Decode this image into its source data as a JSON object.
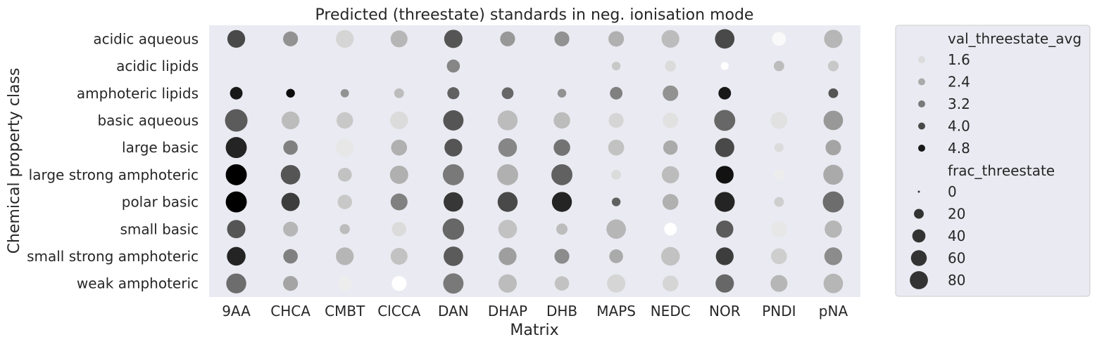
{
  "chart_data": {
    "type": "scatter",
    "title": "Predicted (threestate) standards in neg. ionisation mode",
    "xlabel": "Matrix",
    "ylabel": "Chemical property class",
    "x_categories": [
      "9AA",
      "CHCA",
      "CMBT",
      "ClCCA",
      "DAN",
      "DHAP",
      "DHB",
      "MAPS",
      "NEDC",
      "NOR",
      "PNDI",
      "pNA"
    ],
    "y_categories": [
      "acidic aqueous",
      "acidic lipids",
      "amphoteric lipids",
      "basic aqueous",
      "large basic",
      "large strong amphoteric",
      "polar basic",
      "small basic",
      "small strong amphoteric",
      "weak amphoteric"
    ],
    "color_legend_title": "val_threestate_avg",
    "color_legend_values": [
      "1.6",
      "2.4",
      "3.2",
      "4.0",
      "4.8"
    ],
    "size_legend_title": "frac_threestate",
    "size_legend_values": [
      "0",
      "20",
      "40",
      "60",
      "80"
    ],
    "legend_position": "outside-right",
    "background": "#eaeaf2",
    "color_scale": {
      "min_value": 1.0,
      "max_value": 5.2,
      "light": "#ffffff",
      "dark": "#000000"
    },
    "points": [
      {
        "x": "9AA",
        "y": "acidic aqueous",
        "frac": 45,
        "val": 4.0
      },
      {
        "x": "CHCA",
        "y": "acidic aqueous",
        "frac": 30,
        "val": 2.8
      },
      {
        "x": "CMBT",
        "y": "acidic aqueous",
        "frac": 45,
        "val": 1.7
      },
      {
        "x": "ClCCA",
        "y": "acidic aqueous",
        "frac": 40,
        "val": 2.2
      },
      {
        "x": "DAN",
        "y": "acidic aqueous",
        "frac": 48,
        "val": 3.8
      },
      {
        "x": "DHAP",
        "y": "acidic aqueous",
        "frac": 30,
        "val": 2.7
      },
      {
        "x": "DHB",
        "y": "acidic aqueous",
        "frac": 30,
        "val": 2.8
      },
      {
        "x": "MAPS",
        "y": "acidic aqueous",
        "frac": 33,
        "val": 2.3
      },
      {
        "x": "NEDC",
        "y": "acidic aqueous",
        "frac": 45,
        "val": 2.1
      },
      {
        "x": "NOR",
        "y": "acidic aqueous",
        "frac": 55,
        "val": 4.0
      },
      {
        "x": "PNDI",
        "y": "acidic aqueous",
        "frac": 25,
        "val": 1.1
      },
      {
        "x": "pNA",
        "y": "acidic aqueous",
        "frac": 48,
        "val": 2.2
      },
      {
        "x": "DAN",
        "y": "acidic lipids",
        "frac": 22,
        "val": 3.0
      },
      {
        "x": "MAPS",
        "y": "acidic lipids",
        "frac": 7,
        "val": 1.9
      },
      {
        "x": "NEDC",
        "y": "acidic lipids",
        "frac": 14,
        "val": 1.6
      },
      {
        "x": "NOR",
        "y": "acidic lipids",
        "frac": 5,
        "val": 1.0
      },
      {
        "x": "PNDI",
        "y": "acidic lipids",
        "frac": 12,
        "val": 2.1
      },
      {
        "x": "pNA",
        "y": "acidic lipids",
        "frac": 13,
        "val": 1.9
      },
      {
        "x": "9AA",
        "y": "amphoteric lipids",
        "frac": 20,
        "val": 4.8
      },
      {
        "x": "CHCA",
        "y": "amphoteric lipids",
        "frac": 7,
        "val": 5.0
      },
      {
        "x": "CMBT",
        "y": "amphoteric lipids",
        "frac": 6,
        "val": 2.8
      },
      {
        "x": "ClCCA",
        "y": "amphoteric lipids",
        "frac": 10,
        "val": 2.1
      },
      {
        "x": "DAN",
        "y": "amphoteric lipids",
        "frac": 18,
        "val": 3.6
      },
      {
        "x": "DHAP",
        "y": "amphoteric lipids",
        "frac": 17,
        "val": 3.5
      },
      {
        "x": "DHB",
        "y": "amphoteric lipids",
        "frac": 7,
        "val": 2.8
      },
      {
        "x": "MAPS",
        "y": "amphoteric lipids",
        "frac": 20,
        "val": 3.1
      },
      {
        "x": "NEDC",
        "y": "amphoteric lipids",
        "frac": 33,
        "val": 2.8
      },
      {
        "x": "NOR",
        "y": "amphoteric lipids",
        "frac": 20,
        "val": 4.8
      },
      {
        "x": "pNA",
        "y": "amphoteric lipids",
        "frac": 10,
        "val": 3.8
      },
      {
        "x": "9AA",
        "y": "basic aqueous",
        "frac": 75,
        "val": 3.7
      },
      {
        "x": "CHCA",
        "y": "basic aqueous",
        "frac": 45,
        "val": 2.1
      },
      {
        "x": "CMBT",
        "y": "basic aqueous",
        "frac": 38,
        "val": 1.9
      },
      {
        "x": "ClCCA",
        "y": "basic aqueous",
        "frac": 45,
        "val": 1.6
      },
      {
        "x": "DAN",
        "y": "basic aqueous",
        "frac": 60,
        "val": 3.8
      },
      {
        "x": "DHAP",
        "y": "basic aqueous",
        "frac": 58,
        "val": 2.1
      },
      {
        "x": "DHB",
        "y": "basic aqueous",
        "frac": 38,
        "val": 2.1
      },
      {
        "x": "MAPS",
        "y": "basic aqueous",
        "frac": 30,
        "val": 1.7
      },
      {
        "x": "NEDC",
        "y": "basic aqueous",
        "frac": 33,
        "val": 1.5
      },
      {
        "x": "NOR",
        "y": "basic aqueous",
        "frac": 65,
        "val": 3.5
      },
      {
        "x": "PNDI",
        "y": "basic aqueous",
        "frac": 40,
        "val": 1.5
      },
      {
        "x": "pNA",
        "y": "basic aqueous",
        "frac": 55,
        "val": 2.7
      },
      {
        "x": "9AA",
        "y": "large basic",
        "frac": 65,
        "val": 4.6
      },
      {
        "x": "CHCA",
        "y": "large basic",
        "frac": 28,
        "val": 3.1
      },
      {
        "x": "CMBT",
        "y": "large basic",
        "frac": 45,
        "val": 1.4
      },
      {
        "x": "ClCCA",
        "y": "large basic",
        "frac": 35,
        "val": 2.3
      },
      {
        "x": "DAN",
        "y": "large basic",
        "frac": 45,
        "val": 3.8
      },
      {
        "x": "DHAP",
        "y": "large basic",
        "frac": 50,
        "val": 3.0
      },
      {
        "x": "DHB",
        "y": "large basic",
        "frac": 38,
        "val": 3.3
      },
      {
        "x": "MAPS",
        "y": "large basic",
        "frac": 35,
        "val": 2.0
      },
      {
        "x": "NEDC",
        "y": "large basic",
        "frac": 28,
        "val": 2.4
      },
      {
        "x": "NOR",
        "y": "large basic",
        "frac": 53,
        "val": 4.0
      },
      {
        "x": "PNDI",
        "y": "large basic",
        "frac": 8,
        "val": 1.6
      },
      {
        "x": "pNA",
        "y": "large basic",
        "frac": 33,
        "val": 2.5
      },
      {
        "x": "9AA",
        "y": "large strong amphoteric",
        "frac": 65,
        "val": 5.2
      },
      {
        "x": "CHCA",
        "y": "large strong amphoteric",
        "frac": 55,
        "val": 3.8
      },
      {
        "x": "CMBT",
        "y": "large strong amphoteric",
        "frac": 25,
        "val": 2.0
      },
      {
        "x": "ClCCA",
        "y": "large strong amphoteric",
        "frac": 48,
        "val": 2.3
      },
      {
        "x": "DAN",
        "y": "large strong amphoteric",
        "frac": 65,
        "val": 3.2
      },
      {
        "x": "DHAP",
        "y": "large strong amphoteric",
        "frac": 65,
        "val": 2.3
      },
      {
        "x": "DHB",
        "y": "large strong amphoteric",
        "frac": 65,
        "val": 3.6
      },
      {
        "x": "MAPS",
        "y": "large strong amphoteric",
        "frac": 10,
        "val": 1.6
      },
      {
        "x": "NEDC",
        "y": "large strong amphoteric",
        "frac": 42,
        "val": 2.1
      },
      {
        "x": "NOR",
        "y": "large strong amphoteric",
        "frac": 45,
        "val": 4.9
      },
      {
        "x": "PNDI",
        "y": "large strong amphoteric",
        "frac": 12,
        "val": 1.3
      },
      {
        "x": "pNA",
        "y": "large strong amphoteric",
        "frac": 58,
        "val": 2.4
      },
      {
        "x": "9AA",
        "y": "polar basic",
        "frac": 65,
        "val": 5.2
      },
      {
        "x": "CHCA",
        "y": "polar basic",
        "frac": 48,
        "val": 4.2
      },
      {
        "x": "CMBT",
        "y": "polar basic",
        "frac": 28,
        "val": 1.9
      },
      {
        "x": "ClCCA",
        "y": "polar basic",
        "frac": 40,
        "val": 3.1
      },
      {
        "x": "DAN",
        "y": "polar basic",
        "frac": 55,
        "val": 4.3
      },
      {
        "x": "DHAP",
        "y": "polar basic",
        "frac": 58,
        "val": 4.0
      },
      {
        "x": "DHB",
        "y": "polar basic",
        "frac": 58,
        "val": 4.6
      },
      {
        "x": "MAPS",
        "y": "polar basic",
        "frac": 7,
        "val": 3.6
      },
      {
        "x": "NEDC",
        "y": "polar basic",
        "frac": 35,
        "val": 2.3
      },
      {
        "x": "NOR",
        "y": "polar basic",
        "frac": 58,
        "val": 4.6
      },
      {
        "x": "PNDI",
        "y": "polar basic",
        "frac": 10,
        "val": 1.8
      },
      {
        "x": "pNA",
        "y": "polar basic",
        "frac": 65,
        "val": 3.4
      },
      {
        "x": "9AA",
        "y": "small basic",
        "frac": 48,
        "val": 3.8
      },
      {
        "x": "CHCA",
        "y": "small basic",
        "frac": 30,
        "val": 2.2
      },
      {
        "x": "CMBT",
        "y": "small basic",
        "frac": 11,
        "val": 2.1
      },
      {
        "x": "ClCCA",
        "y": "small basic",
        "frac": 28,
        "val": 1.6
      },
      {
        "x": "DAN",
        "y": "small basic",
        "frac": 68,
        "val": 3.5
      },
      {
        "x": "DHAP",
        "y": "small basic",
        "frac": 50,
        "val": 2.0
      },
      {
        "x": "DHB",
        "y": "small basic",
        "frac": 15,
        "val": 2.1
      },
      {
        "x": "MAPS",
        "y": "small basic",
        "frac": 55,
        "val": 2.2
      },
      {
        "x": "NEDC",
        "y": "small basic",
        "frac": 20,
        "val": 1.0
      },
      {
        "x": "NOR",
        "y": "small basic",
        "frac": 42,
        "val": 3.7
      },
      {
        "x": "PNDI",
        "y": "small basic",
        "frac": 35,
        "val": 1.4
      },
      {
        "x": "pNA",
        "y": "small basic",
        "frac": 42,
        "val": 2.2
      },
      {
        "x": "9AA",
        "y": "small strong amphoteric",
        "frac": 50,
        "val": 4.6
      },
      {
        "x": "CHCA",
        "y": "small strong amphoteric",
        "frac": 28,
        "val": 3.1
      },
      {
        "x": "CMBT",
        "y": "small strong amphoteric",
        "frac": 45,
        "val": 2.2
      },
      {
        "x": "ClCCA",
        "y": "small strong amphoteric",
        "frac": 40,
        "val": 2.0
      },
      {
        "x": "DAN",
        "y": "small strong amphoteric",
        "frac": 55,
        "val": 3.7
      },
      {
        "x": "DHAP",
        "y": "small strong amphoteric",
        "frac": 45,
        "val": 2.6
      },
      {
        "x": "DHB",
        "y": "small strong amphoteric",
        "frac": 30,
        "val": 2.9
      },
      {
        "x": "MAPS",
        "y": "small strong amphoteric",
        "frac": 25,
        "val": 2.4
      },
      {
        "x": "NEDC",
        "y": "small strong amphoteric",
        "frac": 50,
        "val": 2.0
      },
      {
        "x": "NOR",
        "y": "small strong amphoteric",
        "frac": 45,
        "val": 4.2
      },
      {
        "x": "PNDI",
        "y": "small strong amphoteric",
        "frac": 35,
        "val": 1.8
      },
      {
        "x": "pNA",
        "y": "small strong amphoteric",
        "frac": 45,
        "val": 2.9
      },
      {
        "x": "9AA",
        "y": "weak amphoteric",
        "frac": 58,
        "val": 3.4
      },
      {
        "x": "CHCA",
        "y": "weak amphoteric",
        "frac": 30,
        "val": 2.5
      },
      {
        "x": "CMBT",
        "y": "weak amphoteric",
        "frac": 25,
        "val": 1.3
      },
      {
        "x": "ClCCA",
        "y": "weak amphoteric",
        "frac": 30,
        "val": 1.0
      },
      {
        "x": "DAN",
        "y": "weak amphoteric",
        "frac": 60,
        "val": 3.2
      },
      {
        "x": "DHAP",
        "y": "weak amphoteric",
        "frac": 48,
        "val": 2.1
      },
      {
        "x": "DHB",
        "y": "weak amphoteric",
        "frac": 28,
        "val": 2.0
      },
      {
        "x": "MAPS",
        "y": "weak amphoteric",
        "frac": 48,
        "val": 1.7
      },
      {
        "x": "NEDC",
        "y": "weak amphoteric",
        "frac": 35,
        "val": 1.7
      },
      {
        "x": "NOR",
        "y": "weak amphoteric",
        "frac": 48,
        "val": 3.5
      },
      {
        "x": "PNDI",
        "y": "weak amphoteric",
        "frac": 40,
        "val": 2.2
      },
      {
        "x": "pNA",
        "y": "weak amphoteric",
        "frac": 55,
        "val": 2.2
      }
    ]
  }
}
